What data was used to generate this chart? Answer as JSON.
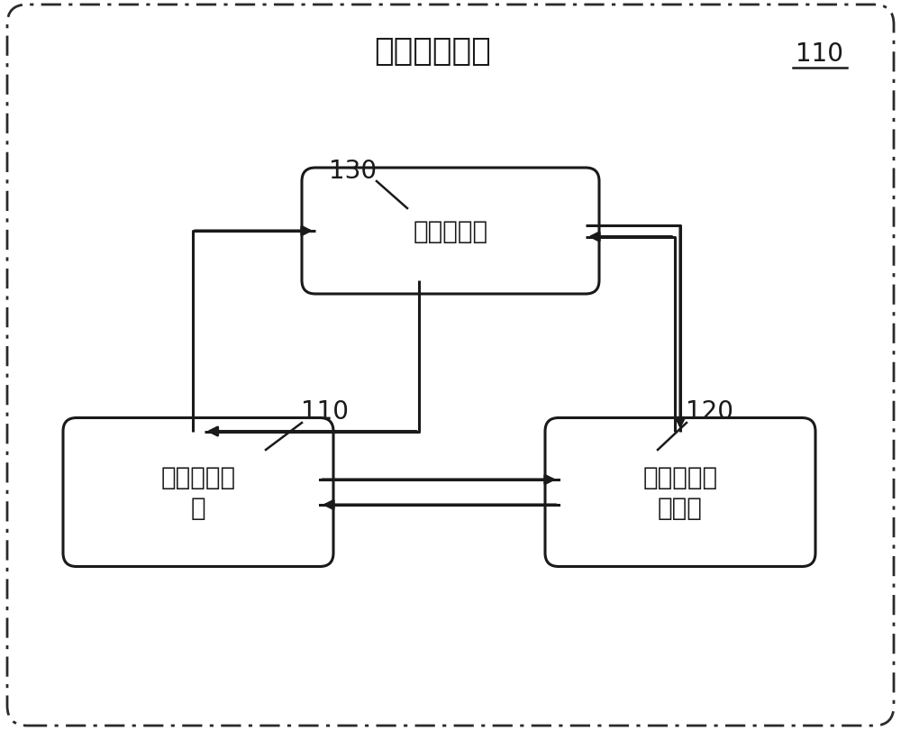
{
  "title": "健康体检系统",
  "label_system_ref": "110",
  "box_top_label": "用户预约端",
  "box_top_ref": "130",
  "box_left_label": "信息配置平\n台",
  "box_left_ref": "110",
  "box_right_label": "用户信息配\n置平台",
  "box_right_ref": "120",
  "bg_color": "#ffffff",
  "border_color": "#2a2a2a",
  "box_fill": "#ffffff",
  "box_edge": "#1a1a1a",
  "text_color": "#1a1a1a",
  "arrow_color": "#1a1a1a",
  "title_fontsize": 26,
  "label_fontsize": 20,
  "ref_fontsize": 20
}
